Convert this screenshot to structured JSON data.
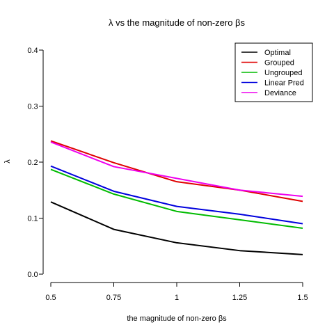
{
  "chart_data": {
    "type": "line",
    "title": "λ vs the magnitude of non-zero βs",
    "xlabel": "the magnitude of non-zero βs",
    "ylabel": "λ",
    "x": [
      0.5,
      0.75,
      1,
      1.25,
      1.5
    ],
    "x_tick_labels": [
      "0.5",
      "0.75",
      "1",
      "1.25",
      "1.5"
    ],
    "xlim": [
      0.5,
      1.5
    ],
    "ylim": [
      0,
      0.4
    ],
    "y_ticks": [
      0.0,
      0.1,
      0.2,
      0.3,
      0.4
    ],
    "y_tick_labels": [
      "0.0",
      "0.1",
      "0.2",
      "0.3",
      "0.4"
    ],
    "grid": false,
    "legend_position": "top-right",
    "series": [
      {
        "name": "Optimal",
        "color": "#000000",
        "values": [
          0.129,
          0.08,
          0.056,
          0.042,
          0.035
        ]
      },
      {
        "name": "Grouped",
        "color": "#df0000",
        "values": [
          0.238,
          0.199,
          0.165,
          0.15,
          0.13
        ]
      },
      {
        "name": "Ungrouped",
        "color": "#00bb00",
        "values": [
          0.187,
          0.143,
          0.112,
          0.097,
          0.082
        ]
      },
      {
        "name": "Linear Pred",
        "color": "#0000dd",
        "values": [
          0.193,
          0.148,
          0.121,
          0.107,
          0.09
        ]
      },
      {
        "name": "Deviance",
        "color": "#ee00ee",
        "values": [
          0.236,
          0.192,
          0.171,
          0.15,
          0.139
        ]
      }
    ]
  }
}
